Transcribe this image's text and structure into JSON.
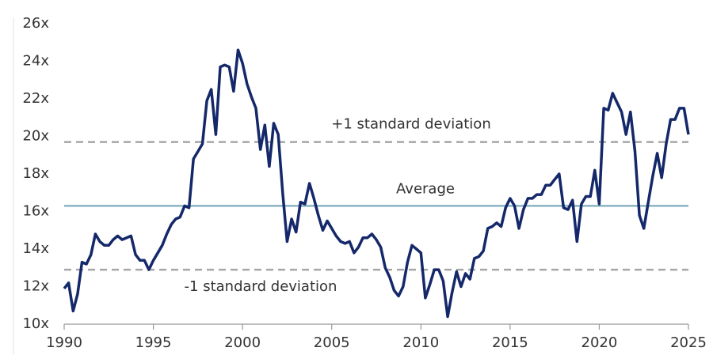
{
  "chart_data": {
    "type": "line",
    "color": "#14286a",
    "x": [
      1990,
      1990.25,
      1990.5,
      1990.75,
      1991,
      1991.25,
      1991.5,
      1991.75,
      1992,
      1992.25,
      1992.5,
      1992.75,
      1993,
      1993.25,
      1993.5,
      1993.75,
      1994,
      1994.25,
      1994.5,
      1994.75,
      1995,
      1995.25,
      1995.5,
      1995.75,
      1996,
      1996.25,
      1996.5,
      1996.75,
      1997,
      1997.25,
      1997.5,
      1997.75,
      1998,
      1998.25,
      1998.5,
      1998.75,
      1999,
      1999.25,
      1999.5,
      1999.75,
      2000,
      2000.25,
      2000.5,
      2000.75,
      2001,
      2001.25,
      2001.5,
      2001.75,
      2002,
      2002.25,
      2002.5,
      2002.75,
      2003,
      2003.25,
      2003.5,
      2003.75,
      2004,
      2004.25,
      2004.5,
      2004.75,
      2005,
      2005.25,
      2005.5,
      2005.75,
      2006,
      2006.25,
      2006.5,
      2006.75,
      2007,
      2007.25,
      2007.5,
      2007.75,
      2008,
      2008.25,
      2008.5,
      2008.75,
      2009,
      2009.25,
      2009.5,
      2009.75,
      2010,
      2010.25,
      2010.5,
      2010.75,
      2011,
      2011.25,
      2011.5,
      2011.75,
      2012,
      2012.25,
      2012.5,
      2012.75,
      2013,
      2013.25,
      2013.5,
      2013.75,
      2014,
      2014.25,
      2014.5,
      2014.75,
      2015,
      2015.25,
      2015.5,
      2015.75,
      2016,
      2016.25,
      2016.5,
      2016.75,
      2017,
      2017.25,
      2017.5,
      2017.75,
      2018,
      2018.25,
      2018.5,
      2018.75,
      2019,
      2019.25,
      2019.5,
      2019.75,
      2020,
      2020.25,
      2020.5,
      2020.75,
      2021,
      2021.25,
      2021.5,
      2021.75,
      2022,
      2022.25,
      2022.5,
      2022.75,
      2023,
      2023.25,
      2023.5,
      2023.75,
      2024,
      2024.25,
      2024.5,
      2024.75,
      2025
    ],
    "values": [
      11.9,
      12.2,
      10.7,
      11.6,
      13.3,
      13.2,
      13.7,
      14.8,
      14.4,
      14.2,
      14.2,
      14.5,
      14.7,
      14.5,
      14.6,
      14.7,
      13.7,
      13.4,
      13.4,
      12.9,
      13.4,
      13.8,
      14.2,
      14.8,
      15.3,
      15.6,
      15.7,
      16.3,
      16.2,
      18.8,
      19.2,
      19.6,
      21.9,
      22.5,
      20.1,
      23.7,
      23.8,
      23.7,
      22.4,
      24.6,
      23.9,
      22.8,
      22.1,
      21.5,
      19.3,
      20.6,
      18.4,
      20.7,
      20.1,
      17.0,
      14.4,
      15.6,
      14.9,
      16.5,
      16.4,
      17.5,
      16.7,
      15.8,
      15.0,
      15.5,
      15.1,
      14.7,
      14.4,
      14.3,
      14.4,
      13.8,
      14.1,
      14.6,
      14.6,
      14.8,
      14.5,
      14.1,
      13.0,
      12.5,
      11.8,
      11.5,
      12.0,
      13.3,
      14.2,
      14.0,
      13.8,
      11.4,
      12.1,
      12.9,
      12.9,
      12.3,
      10.4,
      11.7,
      12.8,
      12.0,
      12.7,
      12.4,
      13.5,
      13.6,
      13.9,
      15.1,
      15.2,
      15.4,
      15.2,
      16.2,
      16.7,
      16.3,
      15.1,
      16.1,
      16.7,
      16.7,
      16.9,
      16.9,
      17.4,
      17.4,
      17.7,
      18.0,
      16.2,
      16.1,
      16.6,
      14.4,
      16.4,
      16.8,
      16.8,
      18.2,
      16.4,
      21.5,
      21.4,
      22.3,
      21.8,
      21.3,
      20.1,
      21.3,
      19.2,
      15.8,
      15.1,
      16.5,
      17.9,
      19.1,
      17.8,
      19.6,
      20.9,
      20.9,
      21.5,
      21.5,
      20.1
    ],
    "xlim": [
      1990,
      2025
    ],
    "xticks": [
      1990,
      1995,
      2000,
      2005,
      2010,
      2015,
      2020,
      2025
    ],
    "ylim": [
      10,
      26
    ],
    "yticks": [
      {
        "value": 10,
        "label": "10x"
      },
      {
        "value": 12,
        "label": "12x"
      },
      {
        "value": 14,
        "label": "14x"
      },
      {
        "value": 16,
        "label": "16x"
      },
      {
        "value": 18,
        "label": "18x"
      },
      {
        "value": 20,
        "label": "20x"
      },
      {
        "value": 22,
        "label": "22x"
      },
      {
        "value": 24,
        "label": "24x"
      },
      {
        "value": 26,
        "label": "26x"
      }
    ],
    "reference_lines": [
      {
        "label": "+1 standard deviation",
        "value": 19.7,
        "color": "#a6a6a6",
        "dashed": true
      },
      {
        "label": "Average",
        "value": 16.3,
        "color": "#8ab3c4",
        "dashed": false
      },
      {
        "label": "-1 standard deviation",
        "value": 12.9,
        "color": "#a6a6a6",
        "dashed": true
      }
    ]
  }
}
